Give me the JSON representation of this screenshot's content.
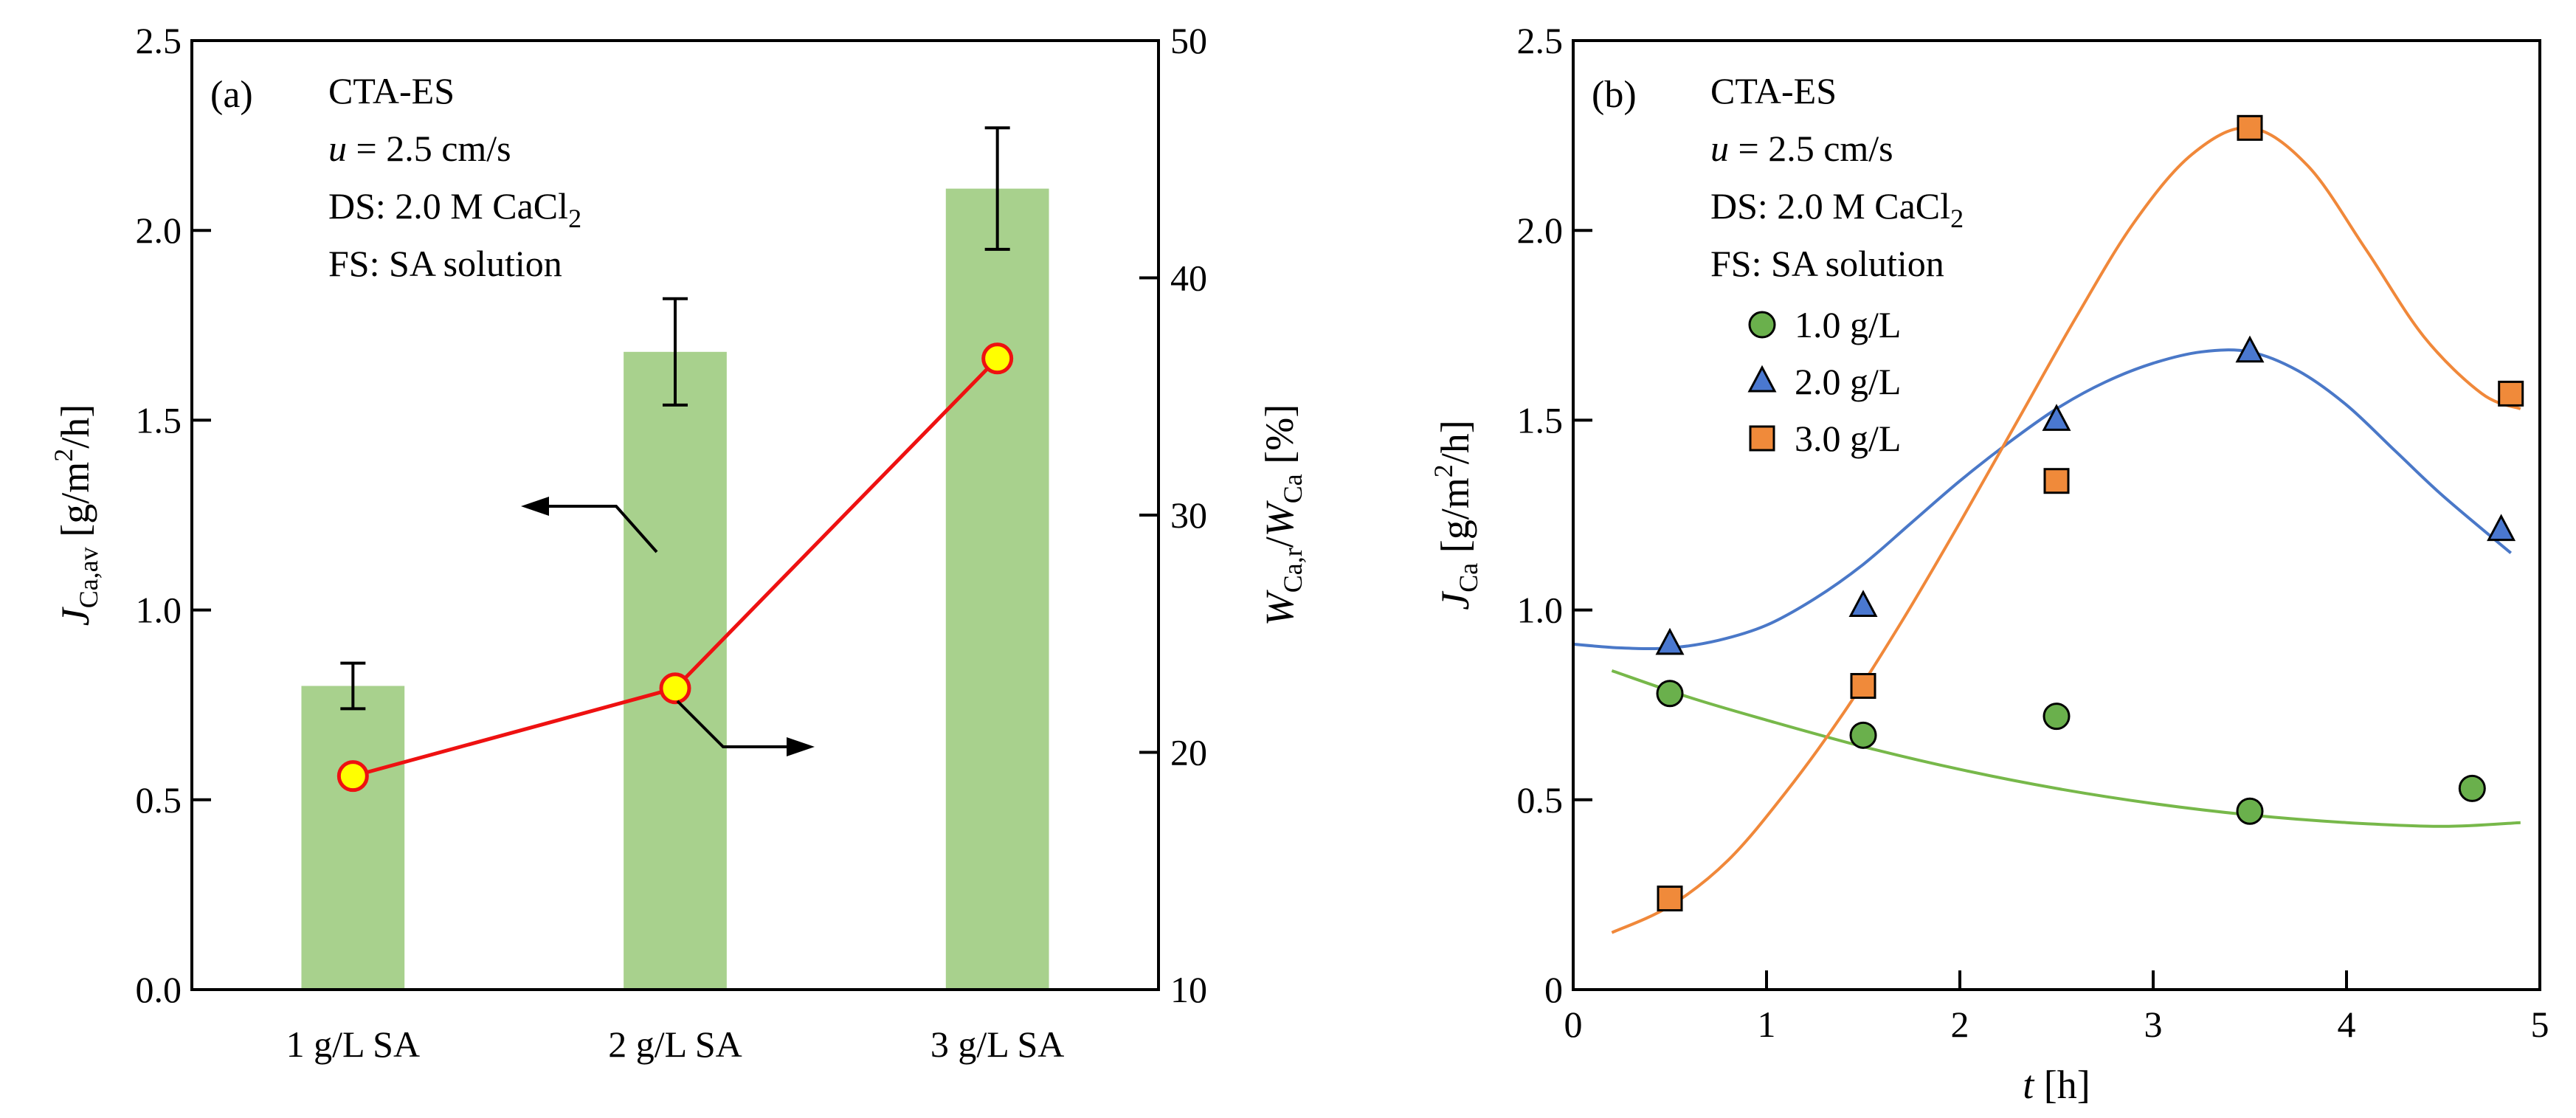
{
  "chart_data": [
    {
      "type": "bar",
      "panel_label": "(a)",
      "annotations": [
        "CTA-ES",
        "u = 2.5 cm/s",
        "DS: 2.0 M CaCl2",
        "FS: SA solution"
      ],
      "annotation_parts": {
        "line1": "CTA-ES",
        "line2_var": "u",
        "line2_rest": " = 2.5 cm/s",
        "line3_main": "DS: 2.0 M CaCl",
        "line3_sub": "2",
        "line4": "FS: SA solution"
      },
      "categories": [
        "1 g/L SA",
        "2 g/L SA",
        "3 g/L SA"
      ],
      "series": [
        {
          "axis": "left",
          "kind": "bar",
          "values": [
            0.8,
            1.68,
            2.11
          ],
          "errors": [
            0.06,
            0.14,
            0.16
          ],
          "color": "#a8d18d"
        },
        {
          "axis": "right",
          "kind": "line-marker",
          "values": [
            19.0,
            22.7,
            36.6
          ],
          "line_color": "#ee1111",
          "marker_fill": "#ffff00",
          "marker_edge": "#ee1111"
        }
      ],
      "ylabel": "JCa,av [g/m2/h]",
      "ylabel_parts": {
        "var": "J",
        "sub": "Ca,av",
        "rest_a": " [g/m",
        "sup": "2",
        "rest_b": "/h]"
      },
      "y2label": "WCa,r/WCa [%]",
      "y2label_parts": {
        "var1": "W",
        "sub1": "Ca,r",
        "slash": "/",
        "var2": "W",
        "sub2": "Ca",
        "rest": " [%]"
      },
      "ylim": [
        0,
        2.5
      ],
      "y2lim": [
        10,
        50
      ],
      "yticks": [
        0.0,
        0.5,
        1.0,
        1.5,
        2.0,
        2.5
      ],
      "ytick_labels": [
        "0.0",
        "0.5",
        "1.0",
        "1.5",
        "2.0",
        "2.5"
      ],
      "y2ticks": [
        10,
        20,
        30,
        40,
        50
      ],
      "y2tick_labels": [
        "10",
        "20",
        "30",
        "40",
        "50"
      ],
      "grid": false
    },
    {
      "type": "scatter",
      "panel_label": "(b)",
      "annotations": [
        "CTA-ES",
        "u = 2.5 cm/s",
        "DS: 2.0 M CaCl2",
        "FS: SA solution"
      ],
      "annotation_parts": {
        "line1": "CTA-ES",
        "line2_var": "u",
        "line2_rest": " = 2.5 cm/s",
        "line3_main": "DS: 2.0 M CaCl",
        "line3_sub": "2",
        "line4": "FS: SA solution"
      },
      "series": [
        {
          "name": "1.0 g/L",
          "marker": "circle",
          "color": "#6ab04c",
          "x": [
            0.5,
            1.5,
            2.5,
            3.5,
            4.65
          ],
          "y": [
            0.78,
            0.67,
            0.72,
            0.47,
            0.53
          ],
          "fit_x": [
            0.2,
            0.6,
            1.0,
            1.5,
            2.0,
            2.5,
            3.0,
            3.5,
            4.0,
            4.5,
            4.9
          ],
          "fit_y": [
            0.84,
            0.77,
            0.71,
            0.64,
            0.58,
            0.53,
            0.49,
            0.46,
            0.44,
            0.43,
            0.44
          ],
          "fit_color": "#77b84a"
        },
        {
          "name": "2.0 g/L",
          "marker": "triangle",
          "color": "#4a78d0",
          "x": [
            0.5,
            1.5,
            2.5,
            3.5,
            4.8
          ],
          "y": [
            0.91,
            1.01,
            1.5,
            1.68,
            1.21
          ],
          "fit_x": [
            0.0,
            0.25,
            0.5,
            0.75,
            1.0,
            1.25,
            1.5,
            1.75,
            2.0,
            2.25,
            2.5,
            2.75,
            3.0,
            3.25,
            3.5,
            3.75,
            4.0,
            4.25,
            4.5,
            4.85
          ],
          "fit_y": [
            0.91,
            0.9,
            0.9,
            0.92,
            0.96,
            1.03,
            1.12,
            1.23,
            1.34,
            1.44,
            1.53,
            1.6,
            1.65,
            1.68,
            1.68,
            1.63,
            1.54,
            1.42,
            1.3,
            1.15
          ],
          "fit_color": "#4a78c8"
        },
        {
          "name": "3.0 g/L",
          "marker": "square",
          "color": "#f08a3a",
          "x": [
            0.5,
            1.5,
            2.5,
            3.5,
            4.85
          ],
          "y": [
            0.24,
            0.8,
            1.34,
            2.27,
            1.57
          ],
          "fit_x": [
            0.2,
            0.5,
            0.8,
            1.1,
            1.4,
            1.7,
            2.0,
            2.3,
            2.6,
            2.9,
            3.2,
            3.5,
            3.8,
            4.1,
            4.4,
            4.7,
            4.9
          ],
          "fit_y": [
            0.15,
            0.22,
            0.34,
            0.52,
            0.73,
            0.97,
            1.23,
            1.5,
            1.77,
            2.02,
            2.2,
            2.27,
            2.17,
            1.95,
            1.72,
            1.57,
            1.53
          ],
          "fit_color": "#f0883a"
        }
      ],
      "legend": [
        "1.0 g/L",
        "2.0 g/L",
        "3.0 g/L"
      ],
      "legend_placement": "upper-left",
      "xlabel": "t [h]",
      "xlabel_parts": {
        "var": "t",
        "rest": " [h]"
      },
      "ylabel": "JCa [g/m2/h]",
      "ylabel_parts": {
        "var": "J",
        "sub": "Ca",
        "rest_a": " [g/m",
        "sup": "2",
        "rest_b": "/h]"
      },
      "xlim": [
        0,
        5
      ],
      "ylim": [
        0,
        2.5
      ],
      "xticks": [
        0,
        1,
        2,
        3,
        4,
        5
      ],
      "xtick_labels": [
        "0",
        "1",
        "2",
        "3",
        "4",
        "5"
      ],
      "yticks": [
        0,
        0.5,
        1.0,
        1.5,
        2.0,
        2.5
      ],
      "ytick_labels": [
        "0",
        "0.5",
        "1.0",
        "1.5",
        "2.0",
        "2.5"
      ],
      "grid": false
    }
  ]
}
